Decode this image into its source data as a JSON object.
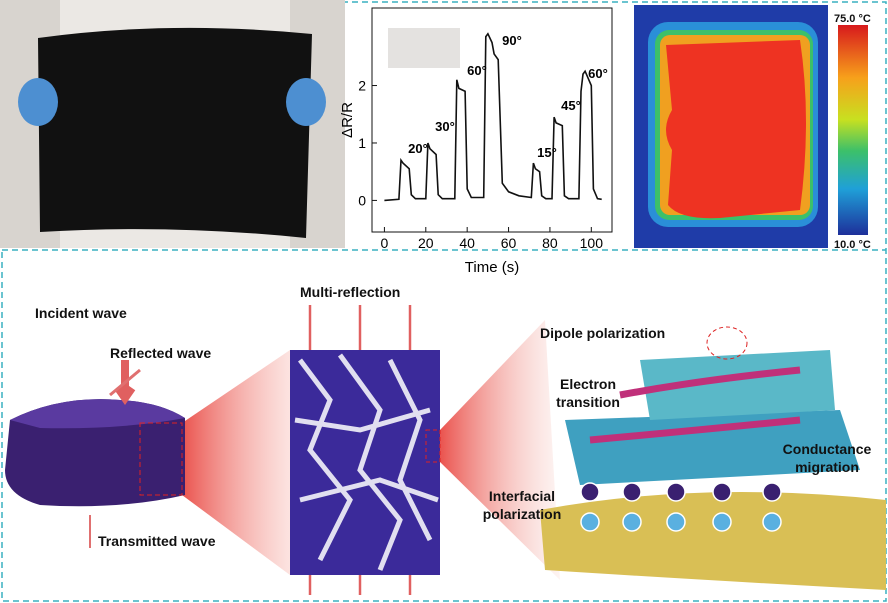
{
  "chart_data": {
    "type": "line",
    "xlabel": "Time (s)",
    "ylabel": "ΔR/R",
    "x": [
      0,
      7,
      8,
      9,
      12,
      13,
      15,
      20,
      21,
      22,
      25,
      26,
      28,
      34,
      35,
      36,
      39,
      40,
      42,
      48,
      49,
      50,
      52,
      53,
      55,
      57,
      60,
      65,
      71,
      72,
      73,
      75,
      76,
      78,
      81,
      82,
      83,
      86,
      87,
      89,
      94,
      95,
      96,
      97,
      100,
      101,
      103,
      105
    ],
    "values": [
      0,
      0.02,
      0.7,
      0.65,
      0.55,
      0.1,
      0.03,
      0.03,
      1.0,
      0.9,
      0.8,
      0.1,
      0.03,
      0.03,
      2.1,
      1.95,
      1.9,
      0.2,
      0.05,
      0.05,
      2.85,
      2.9,
      2.75,
      2.55,
      2.45,
      0.3,
      0.15,
      0.08,
      0.05,
      0.65,
      0.55,
      0.5,
      0.08,
      0.03,
      0.03,
      1.45,
      1.35,
      1.3,
      0.08,
      0.03,
      0.03,
      1.9,
      2.2,
      2.25,
      2.0,
      0.2,
      0.03,
      0.02
    ],
    "color": "#111111",
    "xlim": [
      -6,
      110
    ],
    "ylim": [
      -0.55,
      3.35
    ],
    "xticks": [
      0,
      20,
      40,
      60,
      80,
      100
    ],
    "yticks": [
      0,
      1,
      2
    ],
    "annotations": [
      "20°",
      "30°",
      "60°",
      "90°",
      "15°",
      "45°",
      "60°"
    ]
  },
  "thermal": {
    "max_label": "75.0 °C",
    "min_label": "10.0 °C"
  },
  "diagram": {
    "incident": "Incident wave",
    "reflected": "Reflected wave",
    "transmitted": "Transmitted wave",
    "multi": "Multi-reflection",
    "dipole": "Dipole polarization",
    "electron": "Electron transition",
    "conductance": "Conductance migration",
    "interfacial": "Interfacial polarization"
  }
}
